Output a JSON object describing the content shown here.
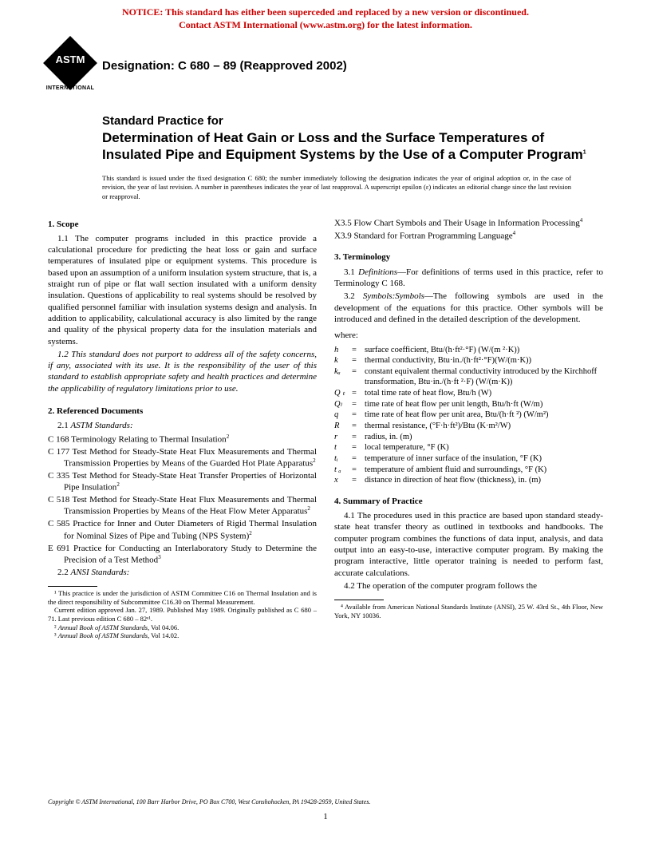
{
  "notice": {
    "color": "#cc0000",
    "line1": "NOTICE: This standard has either been superceded and replaced by a new version or discontinued.",
    "line2": "Contact ASTM International (www.astm.org) for the latest information."
  },
  "logo": {
    "acronym": "ASTM",
    "subtext": "INTERNATIONAL"
  },
  "designation": "Designation: C 680 – 89 (Reapproved 2002)",
  "title": {
    "pre": "Standard Practice for",
    "main": "Determination of Heat Gain or Loss and the Surface Temperatures of Insulated Pipe and Equipment Systems by the Use of a Computer Program",
    "super": "1"
  },
  "issuance": "This standard is issued under the fixed designation C 680; the number immediately following the designation indicates the year of original adoption or, in the case of revision, the year of last revision. A number in parentheses indicates the year of last reapproval. A superscript epsilon (ε) indicates an editorial change since the last revision or reapproval.",
  "sec1": {
    "head": "1.  Scope",
    "p1": "1.1 The computer programs included in this practice provide a calculational procedure for predicting the heat loss or gain and surface temperatures of insulated pipe or equipment systems. This procedure is based upon an assumption of a uniform insulation system structure, that is, a straight run of pipe or flat wall section insulated with a uniform density insulation. Questions of applicability to real systems should be resolved by qualified personnel familiar with insulation systems design and analysis. In addition to applicability, calculational accuracy is also limited by the range and quality of the physical property data for the insulation materials and systems.",
    "p2": "1.2 This standard does not purport to address all of the safety concerns, if any, associated with its use. It is the responsibility of the user of this standard to establish appropriate safety and health practices and determine the applicability of regulatory limitations prior to use."
  },
  "sec2": {
    "head": "2.  Referenced Documents",
    "p1_label": "2.1 ",
    "p1_italic": "ASTM Standards:",
    "items": [
      {
        "code": "C 168",
        "txt": "Terminology Relating to Thermal Insulation",
        "sup": "2"
      },
      {
        "code": "C 177",
        "txt": "Test Method for Steady-State Heat Flux Measurements and Thermal Transmission Properties by Means of the Guarded Hot Plate Apparatus",
        "sup": "2"
      },
      {
        "code": "C 335",
        "txt": "Test Method for Steady-State Heat Transfer Properties of Horizontal Pipe Insulation",
        "sup": "2"
      },
      {
        "code": "C 518",
        "txt": "Test Method for Steady-State Heat Flux Measurements and Thermal Transmission Properties by Means of the Heat Flow Meter Apparatus",
        "sup": "2"
      },
      {
        "code": "C 585",
        "txt": "Practice for Inner and Outer Diameters of Rigid Thermal Insulation for Nominal Sizes of Pipe and Tubing (NPS System)",
        "sup": "2"
      },
      {
        "code": "E 691",
        "txt": "Practice for Conducting an Interlaboratory Study to Determine the Precision of a Test Method",
        "sup": "3"
      }
    ],
    "p2_label": "2.2 ",
    "p2_italic": "ANSI Standards:"
  },
  "right_top": {
    "x35": "X3.5  Flow Chart Symbols and Their Usage in Information Processing",
    "x35_sup": "4",
    "x39": "X3.9   Standard for Fortran Programming Language",
    "x39_sup": "4"
  },
  "sec3": {
    "head": "3.  Terminology",
    "p1_lead": "3.1 ",
    "p1_italic": "Definitions",
    "p1_rest": "—For definitions of terms used in this practice, refer to Terminology C 168.",
    "p2_lead": "3.2 ",
    "p2_italic": "Symbols:Symbols",
    "p2_rest": "—The following symbols are used in the development of the equations for this practice. Other symbols will be introduced and defined in the detailed description of the development.",
    "where": "where:",
    "defs": [
      {
        "s": "h",
        "t": "surface coefficient, Btu/(h·ft²·°F) (W/(m ²·K))"
      },
      {
        "s": "k",
        "t": "thermal conductivity, Btu·in./(h·ft²·°F)(W/(m·K))"
      },
      {
        "s": "kₐ",
        "t": "constant equivalent thermal conductivity introduced by the Kirchhoff transformation, Btu·in./(h·ft ²·F) (W/(m·K))"
      },
      {
        "s": "Q ₜ",
        "t": "total time rate of heat flow, Btu/h (W)"
      },
      {
        "s": "Qₗ",
        "t": "time rate of heat flow per unit length, Btu/h·ft (W/m)"
      },
      {
        "s": "q",
        "t": "time rate of heat flow per unit area, Btu/(h·ft ²) (W/m²)"
      },
      {
        "s": "R",
        "t": "thermal resistance, (°F·h·ft²)/Btu (K·m²/W)"
      },
      {
        "s": "r",
        "t": "radius, in. (m)"
      },
      {
        "s": "t",
        "t": "local temperature, °F (K)"
      },
      {
        "s": "tᵢ",
        "t": "temperature of inner surface of the insulation, °F (K)"
      },
      {
        "s": "t ₐ",
        "t": "temperature of ambient fluid and surroundings, °F (K)"
      },
      {
        "s": "x",
        "t": "distance in direction of heat flow (thickness), in. (m)"
      }
    ]
  },
  "sec4": {
    "head": "4.  Summary of Practice",
    "p1": "4.1 The procedures used in this practice are based upon standard steady-state heat transfer theory as outlined in textbooks and handbooks. The computer program combines the functions of data input, analysis, and data output into an easy-to-use, interactive computer program. By making the program interactive, little operator training is needed to perform fast, accurate calculations.",
    "p2": "4.2 The operation of the computer program follows the"
  },
  "footnotes_left": {
    "f1": "¹ This practice is under the jurisdiction of ASTM Committee C16 on Thermal Insulation and is the direct responsibility of Subcommittee C16.30 on Thermal Measurement.",
    "f1b": "Current edition approved Jan. 27, 1989. Published May 1989. Originally published as C 680 – 71. Last previous edition C 680 – 82ᵉ¹.",
    "f2_lead": "² ",
    "f2_italic": "Annual Book of ASTM Standards",
    "f2_rest": ", Vol 04.06.",
    "f3_lead": "³ ",
    "f3_italic": "Annual Book of ASTM Standards",
    "f3_rest": ", Vol 14.02."
  },
  "footnotes_right": {
    "f4": "⁴ Available from American National Standards Institute (ANSI), 25 W. 43rd St., 4th Floor, New York, NY 10036."
  },
  "copyright": "Copyright © ASTM International, 100 Barr Harbor Drive, PO Box C700, West Conshohocken, PA 19428-2959, United States.",
  "page_number": "1"
}
